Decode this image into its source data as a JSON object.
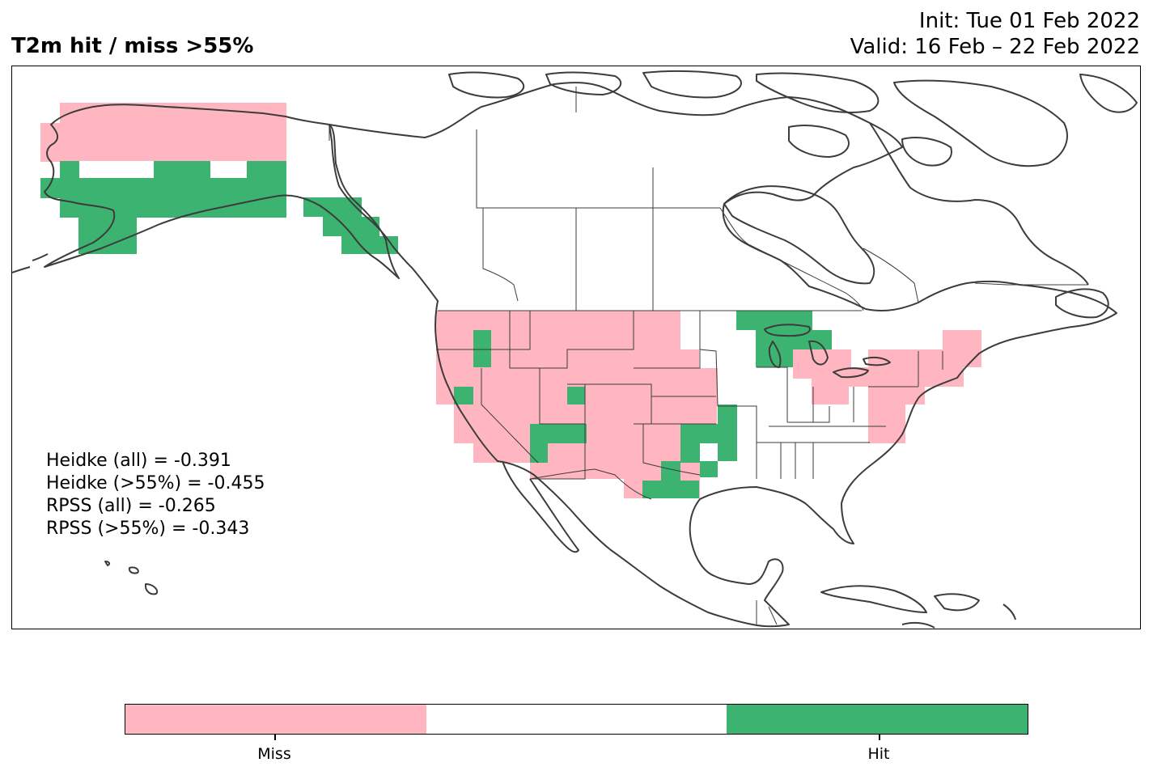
{
  "title": "T2m hit / miss  >55%",
  "init_text": "Init: Tue 01 Feb 2022",
  "valid_text": "Valid: 16 Feb – 22 Feb 2022",
  "stats": [
    "Heidke (all) = -0.391",
    "Heidke (>55%) = -0.455",
    "RPSS (all) = -0.265",
    "RPSS (>55%) = -0.343"
  ],
  "legend": {
    "miss_label": "Miss",
    "hit_label": "Hit"
  },
  "colors": {
    "miss": "#ffb6c1",
    "neutral": "#ffffff",
    "hit": "#3cb371",
    "coast": "#3c3c3c"
  }
}
